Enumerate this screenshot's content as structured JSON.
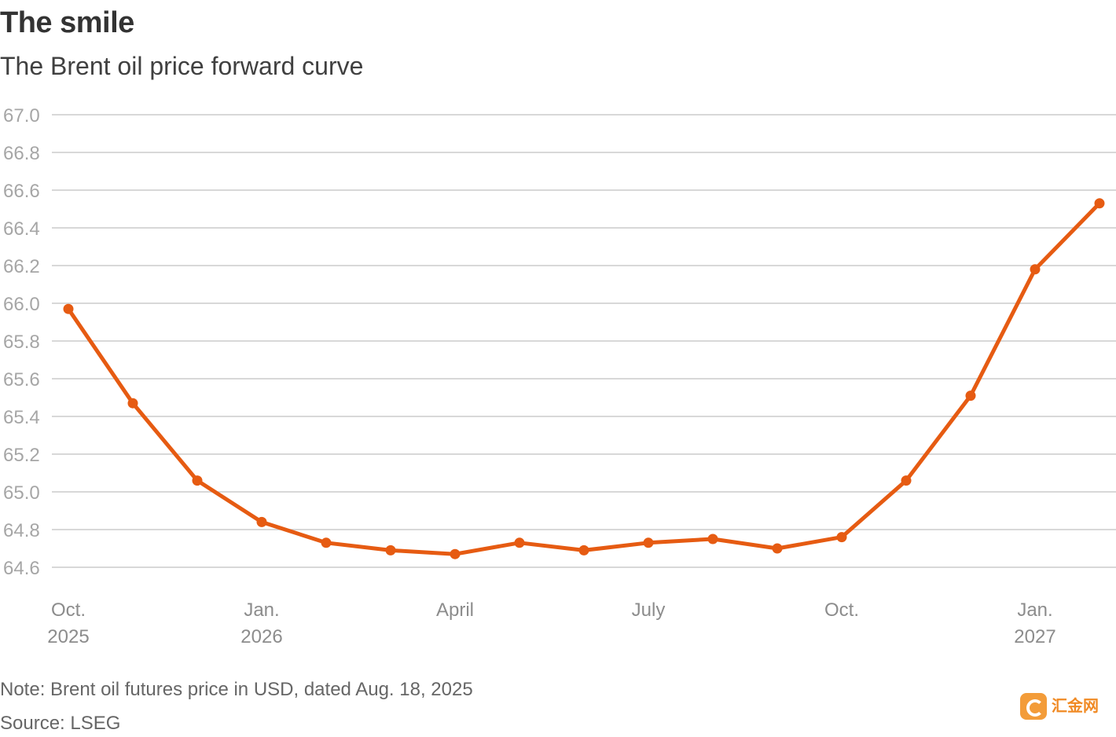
{
  "header": {
    "title": "The smile",
    "subtitle": "The Brent oil price forward curve"
  },
  "footer": {
    "note": "Note: Brent oil futures price in USD, dated Aug. 18, 2025",
    "source": "Source: LSEG"
  },
  "watermark": {
    "text": "汇金网"
  },
  "colors": {
    "line": "#e65b12",
    "grid": "#cccccc",
    "tick_label": "#a6a6a6",
    "x_label": "#8c8c8c"
  },
  "chart_data": {
    "type": "line",
    "title": "The smile",
    "subtitle": "The Brent oil price forward curve",
    "xlabel": "",
    "ylabel": "",
    "grid": true,
    "ylim": [
      64.6,
      67.0
    ],
    "yticks": [
      "64.6",
      "64.8",
      "65.0",
      "65.2",
      "65.4",
      "65.6",
      "65.8",
      "66.0",
      "66.2",
      "66.4",
      "66.6",
      "66.8",
      "67.0"
    ],
    "x": [
      "2025-10",
      "2025-11",
      "2025-12",
      "2026-01",
      "2026-02",
      "2026-03",
      "2026-04",
      "2026-05",
      "2026-06",
      "2026-07",
      "2026-08",
      "2026-09",
      "2026-10",
      "2026-11",
      "2026-12",
      "2027-01",
      "2027-02"
    ],
    "xticks": [
      {
        "at": "2025-10",
        "lines": [
          "Oct.",
          "2025"
        ]
      },
      {
        "at": "2026-01",
        "lines": [
          "Jan.",
          "2026"
        ]
      },
      {
        "at": "2026-04",
        "lines": [
          "April"
        ]
      },
      {
        "at": "2026-07",
        "lines": [
          "July"
        ]
      },
      {
        "at": "2026-10",
        "lines": [
          "Oct."
        ]
      },
      {
        "at": "2027-01",
        "lines": [
          "Jan.",
          "2027"
        ]
      }
    ],
    "series": [
      {
        "values": [
          65.97,
          65.47,
          65.06,
          64.84,
          64.73,
          64.69,
          64.67,
          64.73,
          64.69,
          64.73,
          64.75,
          64.7,
          64.76,
          65.06,
          65.51,
          66.18,
          66.53
        ]
      }
    ]
  }
}
